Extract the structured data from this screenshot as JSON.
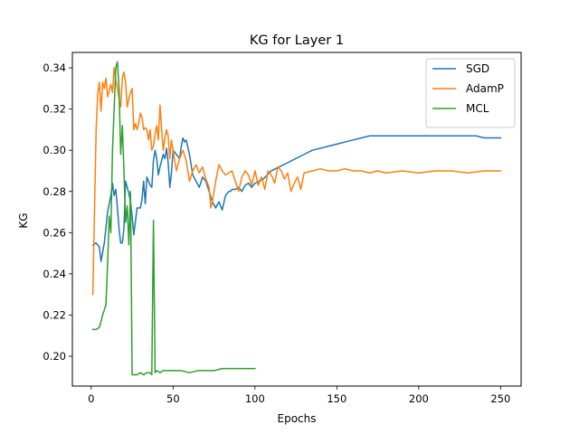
{
  "chart_data": {
    "type": "line",
    "title": "KG for Layer 1",
    "xlabel": "Epochs",
    "ylabel": "KG",
    "xlim": [
      -11.5,
      262.5
    ],
    "ylim": [
      0.1855,
      0.3475
    ],
    "xticks": [
      0,
      50,
      100,
      150,
      200,
      250
    ],
    "yticks": [
      0.2,
      0.22,
      0.24,
      0.26,
      0.28,
      0.3,
      0.32,
      0.34
    ],
    "ytick_labels": [
      "0.20",
      "0.22",
      "0.24",
      "0.26",
      "0.28",
      "0.30",
      "0.32",
      "0.34"
    ],
    "grid": false,
    "legend_position": "top-right",
    "series": [
      {
        "name": "SGD",
        "color": "#1f77b4",
        "x": [
          1,
          3,
          5,
          6,
          8,
          10,
          12,
          13,
          14,
          15,
          16,
          17,
          18,
          19,
          20,
          21,
          22,
          23,
          24,
          25,
          26,
          28,
          30,
          31,
          32,
          33,
          34,
          35,
          36,
          37,
          38,
          39,
          40,
          41,
          42,
          43,
          44,
          45,
          46,
          47,
          48,
          49,
          50,
          52,
          54,
          55,
          56,
          57,
          58,
          60,
          62,
          64,
          66,
          68,
          70,
          72,
          74,
          76,
          78,
          80,
          82,
          84,
          85,
          86,
          88,
          90,
          92,
          94,
          96,
          98,
          100,
          105,
          110,
          115,
          120,
          125,
          130,
          135,
          140,
          145,
          150,
          155,
          160,
          165,
          170,
          175,
          180,
          185,
          190,
          195,
          200,
          205,
          210,
          215,
          220,
          225,
          230,
          235,
          240,
          245,
          250
        ],
        "values": [
          0.254,
          0.255,
          0.253,
          0.246,
          0.255,
          0.27,
          0.278,
          0.284,
          0.278,
          0.281,
          0.272,
          0.262,
          0.255,
          0.255,
          0.262,
          0.285,
          0.282,
          0.279,
          0.275,
          0.268,
          0.259,
          0.272,
          0.272,
          0.276,
          0.285,
          0.274,
          0.287,
          0.285,
          0.283,
          0.282,
          0.295,
          0.3,
          0.296,
          0.288,
          0.292,
          0.295,
          0.298,
          0.296,
          0.301,
          0.294,
          0.282,
          0.289,
          0.3,
          0.298,
          0.296,
          0.302,
          0.306,
          0.304,
          0.305,
          0.298,
          0.288,
          0.285,
          0.282,
          0.287,
          0.285,
          0.28,
          0.275,
          0.272,
          0.275,
          0.271,
          0.278,
          0.28,
          0.28,
          0.281,
          0.281,
          0.282,
          0.28,
          0.283,
          0.284,
          0.282,
          0.284,
          0.286,
          0.29,
          0.292,
          0.294,
          0.296,
          0.298,
          0.3,
          0.301,
          0.302,
          0.303,
          0.304,
          0.305,
          0.306,
          0.307,
          0.307,
          0.307,
          0.307,
          0.307,
          0.307,
          0.307,
          0.307,
          0.307,
          0.307,
          0.307,
          0.307,
          0.307,
          0.307,
          0.306,
          0.306,
          0.306
        ]
      },
      {
        "name": "AdamP",
        "color": "#ff7f0e",
        "x": [
          1,
          2,
          3,
          4,
          5,
          6,
          7,
          8,
          9,
          10,
          11,
          12,
          13,
          14,
          15,
          16,
          17,
          18,
          19,
          20,
          21,
          22,
          23,
          24,
          25,
          26,
          27,
          28,
          29,
          30,
          31,
          32,
          33,
          34,
          35,
          36,
          37,
          38,
          39,
          40,
          41,
          42,
          43,
          44,
          45,
          46,
          47,
          48,
          49,
          50,
          52,
          54,
          56,
          58,
          60,
          62,
          64,
          66,
          68,
          70,
          72,
          73,
          74,
          76,
          78,
          80,
          82,
          84,
          86,
          88,
          90,
          92,
          94,
          96,
          98,
          100,
          102,
          104,
          106,
          108,
          110,
          112,
          114,
          116,
          118,
          120,
          122,
          124,
          126,
          128,
          130,
          135,
          140,
          145,
          150,
          155,
          160,
          165,
          170,
          175,
          180,
          190,
          200,
          210,
          220,
          230,
          240,
          250
        ],
        "values": [
          0.23,
          0.27,
          0.31,
          0.328,
          0.333,
          0.319,
          0.333,
          0.33,
          0.335,
          0.326,
          0.329,
          0.332,
          0.328,
          0.34,
          0.334,
          0.33,
          0.325,
          0.321,
          0.335,
          0.338,
          0.333,
          0.321,
          0.325,
          0.328,
          0.33,
          0.31,
          0.313,
          0.31,
          0.313,
          0.318,
          0.316,
          0.31,
          0.311,
          0.31,
          0.305,
          0.31,
          0.3,
          0.302,
          0.308,
          0.312,
          0.305,
          0.322,
          0.31,
          0.3,
          0.306,
          0.31,
          0.307,
          0.296,
          0.305,
          0.3,
          0.29,
          0.296,
          0.3,
          0.295,
          0.285,
          0.29,
          0.293,
          0.289,
          0.292,
          0.286,
          0.282,
          0.272,
          0.275,
          0.285,
          0.293,
          0.29,
          0.288,
          0.289,
          0.29,
          0.285,
          0.28,
          0.287,
          0.29,
          0.288,
          0.283,
          0.29,
          0.283,
          0.287,
          0.281,
          0.29,
          0.288,
          0.284,
          0.292,
          0.29,
          0.286,
          0.289,
          0.28,
          0.284,
          0.287,
          0.281,
          0.289,
          0.29,
          0.291,
          0.29,
          0.29,
          0.291,
          0.29,
          0.29,
          0.289,
          0.29,
          0.289,
          0.29,
          0.289,
          0.29,
          0.29,
          0.289,
          0.29,
          0.29
        ]
      },
      {
        "name": "MCL",
        "color": "#2ca02c",
        "x": [
          1,
          3,
          5,
          7,
          9,
          10,
          11,
          12,
          13,
          14,
          15,
          16,
          17,
          18,
          19,
          20,
          21,
          22,
          23,
          24,
          25,
          26,
          28,
          30,
          32,
          34,
          36,
          37,
          38,
          39,
          40,
          42,
          44,
          46,
          48,
          50,
          55,
          60,
          65,
          70,
          75,
          80,
          85,
          90,
          95,
          100
        ],
        "values": [
          0.213,
          0.213,
          0.214,
          0.22,
          0.225,
          0.245,
          0.268,
          0.26,
          0.3,
          0.32,
          0.34,
          0.343,
          0.33,
          0.298,
          0.312,
          0.29,
          0.265,
          0.273,
          0.254,
          0.28,
          0.191,
          0.191,
          0.191,
          0.192,
          0.191,
          0.192,
          0.192,
          0.191,
          0.266,
          0.192,
          0.193,
          0.192,
          0.193,
          0.193,
          0.193,
          0.193,
          0.193,
          0.192,
          0.193,
          0.193,
          0.193,
          0.194,
          0.194,
          0.194,
          0.194,
          0.194
        ]
      }
    ]
  }
}
